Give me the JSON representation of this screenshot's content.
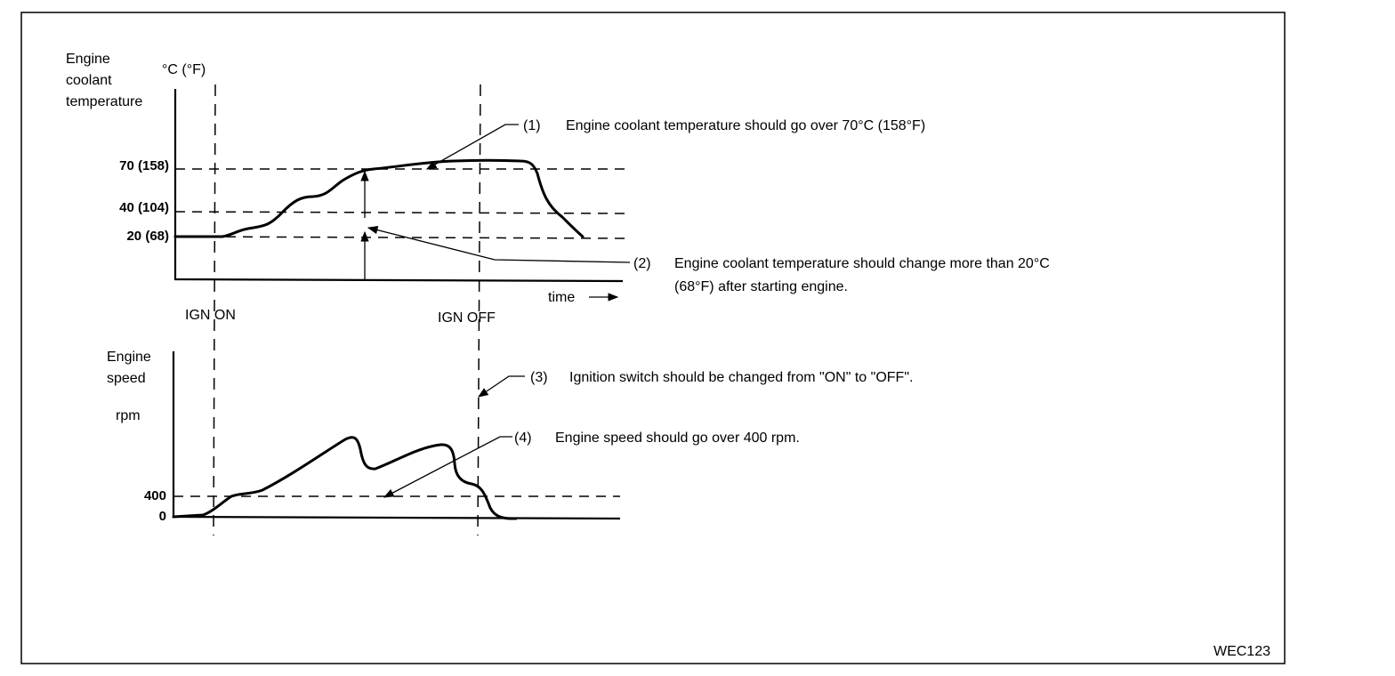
{
  "diagram_code": "WEC123",
  "top_chart": {
    "ylabel_lines": [
      "Engine",
      "coolant",
      "temperature"
    ],
    "unit": "°C (°F)",
    "ticks": [
      "70 (158)",
      "40 (104)",
      "20 (68)"
    ],
    "time_label": "time"
  },
  "markers": {
    "ign_on": "IGN ON",
    "ign_off": "IGN OFF"
  },
  "bottom_chart": {
    "ylabel_lines": [
      "Engine",
      "speed"
    ],
    "unit": "rpm",
    "ticks": [
      "400",
      "0"
    ]
  },
  "notes": [
    {
      "num": "(1)",
      "text": "Engine coolant temperature should go over 70°C (158°F)"
    },
    {
      "num": "(2)",
      "lines": [
        "Engine coolant temperature should change more than 20°C",
        "(68°F) after starting engine."
      ]
    },
    {
      "num": "(3)",
      "text": "Ignition switch should be changed from \"ON\" to \"OFF\"."
    },
    {
      "num": "(4)",
      "text": "Engine speed should go over 400 rpm."
    }
  ]
}
